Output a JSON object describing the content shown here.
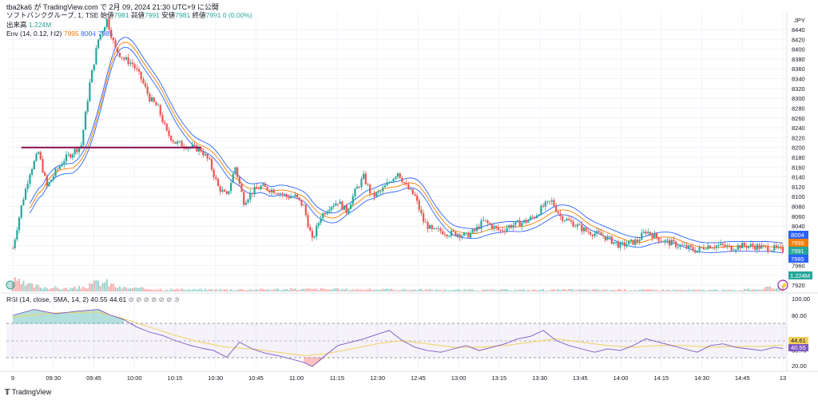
{
  "header": {
    "text": "tba2ka6 が TradingView.com で 2月 09, 2024 21:30 UTC+9 に公開"
  },
  "legend": {
    "symbol": "ソフトバンクグループ, 1, TSE",
    "o_label": "始値",
    "o_val": "7981",
    "h_label": "高値",
    "h_val": "7991",
    "l_label": "安値",
    "l_val": "7981",
    "c_label": "終値",
    "c_val": "7991",
    "chg": "0 (0.00%)",
    "vol_label": "出来高",
    "vol_val": "1.224M",
    "env_label": "Env (14, 0.12, hl2)",
    "env_1": "7995",
    "env_2": "8004",
    "env_3": "7985"
  },
  "rsi_legend": {
    "label": "RSI (14, close, SMA, 14, 2)",
    "v1": "40.55",
    "v2": "44.61"
  },
  "footer": {
    "brand": "TradingView"
  },
  "currency": "JPY",
  "colors": {
    "up": "#26a69a",
    "down": "#ef5350",
    "env_mid": "#f57c00",
    "env_band": "#2962ff",
    "rsi": "#7e57c2",
    "rsi_ma": "#f2d15c",
    "hline": "#880e4f"
  },
  "chart_data": {
    "type": "candlestick",
    "price_ticks": [
      "8440",
      "8420",
      "8400",
      "8380",
      "8360",
      "8340",
      "8320",
      "8300",
      "8280",
      "8260",
      "8240",
      "8220",
      "8200",
      "8180",
      "8160",
      "8140",
      "8120",
      "8100",
      "8080",
      "8060",
      "8040",
      "8020",
      "8000",
      "7980",
      "7960",
      "7940",
      "7920"
    ],
    "time_ticks": [
      "9",
      "09:30",
      "09:45",
      "10:00",
      "10:15",
      "10:30",
      "10:45",
      "11:00",
      "11:15",
      "12:30",
      "12:45",
      "13:00",
      "13:15",
      "13:30",
      "13:45",
      "14:00",
      "14:15",
      "14:30",
      "14:45",
      "13"
    ],
    "rsi_ticks": [
      "100.00",
      "80.00",
      "50.61",
      "38.75",
      "20.00"
    ],
    "price_tags": [
      {
        "text": "8004",
        "price": 8004,
        "color": "#2962ff"
      },
      {
        "text": "7995",
        "price": 7995,
        "color": "#f57c00"
      },
      {
        "text": "7991",
        "price": 7991,
        "color": "#26a69a"
      },
      {
        "text": "7985",
        "price": 7985,
        "color": "#2962ff"
      }
    ],
    "volume_tag": "1.224M",
    "rsi_tags": [
      {
        "text": "44.61",
        "value": 44.61,
        "color": "#f2d15c"
      },
      {
        "text": "40.55",
        "value": 40.55,
        "color": "#7e57c2"
      }
    ],
    "horizontal_line": {
      "price": 8200
    },
    "close_path": [
      [
        0,
        7995
      ],
      [
        4,
        8080
      ],
      [
        8,
        8150
      ],
      [
        12,
        8190
      ],
      [
        16,
        8120
      ],
      [
        20,
        8150
      ],
      [
        24,
        8175
      ],
      [
        28,
        8190
      ],
      [
        32,
        8205
      ],
      [
        36,
        8330
      ],
      [
        40,
        8420
      ],
      [
        44,
        8460
      ],
      [
        48,
        8400
      ],
      [
        52,
        8380
      ],
      [
        56,
        8370
      ],
      [
        60,
        8340
      ],
      [
        64,
        8300
      ],
      [
        68,
        8280
      ],
      [
        72,
        8230
      ],
      [
        76,
        8210
      ],
      [
        80,
        8205
      ],
      [
        84,
        8200
      ],
      [
        88,
        8195
      ],
      [
        92,
        8170
      ],
      [
        96,
        8120
      ],
      [
        100,
        8100
      ],
      [
        104,
        8160
      ],
      [
        108,
        8090
      ],
      [
        112,
        8110
      ],
      [
        116,
        8120
      ],
      [
        120,
        8115
      ],
      [
        124,
        8110
      ],
      [
        128,
        8100
      ],
      [
        132,
        8100
      ],
      [
        136,
        8080
      ],
      [
        140,
        8010
      ],
      [
        144,
        8060
      ],
      [
        148,
        8080
      ],
      [
        152,
        8090
      ],
      [
        156,
        8070
      ],
      [
        160,
        8110
      ],
      [
        164,
        8140
      ],
      [
        168,
        8100
      ],
      [
        172,
        8110
      ],
      [
        176,
        8130
      ],
      [
        180,
        8150
      ],
      [
        184,
        8120
      ],
      [
        188,
        8100
      ],
      [
        192,
        8050
      ],
      [
        196,
        8030
      ],
      [
        200,
        8030
      ],
      [
        204,
        8025
      ],
      [
        208,
        8025
      ],
      [
        212,
        8020
      ],
      [
        216,
        8030
      ],
      [
        220,
        8050
      ],
      [
        224,
        8040
      ],
      [
        228,
        8030
      ],
      [
        232,
        8040
      ],
      [
        236,
        8045
      ],
      [
        240,
        8050
      ],
      [
        244,
        8060
      ],
      [
        248,
        8080
      ],
      [
        252,
        8090
      ],
      [
        256,
        8060
      ],
      [
        260,
        8050
      ],
      [
        264,
        8040
      ],
      [
        268,
        8030
      ],
      [
        272,
        8025
      ],
      [
        276,
        8020
      ],
      [
        280,
        8010
      ],
      [
        284,
        8000
      ],
      [
        288,
        8005
      ],
      [
        292,
        8010
      ],
      [
        296,
        8030
      ],
      [
        300,
        8020
      ],
      [
        304,
        8010
      ],
      [
        308,
        8005
      ],
      [
        312,
        8000
      ],
      [
        316,
        7995
      ],
      [
        320,
        7990
      ],
      [
        324,
        8000
      ],
      [
        328,
        8000
      ],
      [
        332,
        8000
      ],
      [
        336,
        7995
      ],
      [
        340,
        8000
      ],
      [
        344,
        8000
      ],
      [
        348,
        7998
      ],
      [
        352,
        7996
      ],
      [
        356,
        7994
      ],
      [
        360,
        7991
      ]
    ],
    "rsi_path": [
      [
        0,
        80
      ],
      [
        10,
        87
      ],
      [
        20,
        82
      ],
      [
        30,
        85
      ],
      [
        40,
        87
      ],
      [
        46,
        80
      ],
      [
        52,
        75
      ],
      [
        58,
        66
      ],
      [
        64,
        60
      ],
      [
        70,
        56
      ],
      [
        76,
        50
      ],
      [
        82,
        45
      ],
      [
        88,
        41
      ],
      [
        94,
        38
      ],
      [
        100,
        30
      ],
      [
        106,
        48
      ],
      [
        112,
        40
      ],
      [
        118,
        35
      ],
      [
        124,
        32
      ],
      [
        130,
        28
      ],
      [
        136,
        24
      ],
      [
        140,
        19
      ],
      [
        146,
        32
      ],
      [
        152,
        44
      ],
      [
        158,
        48
      ],
      [
        164,
        52
      ],
      [
        170,
        57
      ],
      [
        176,
        62
      ],
      [
        182,
        50
      ],
      [
        188,
        42
      ],
      [
        194,
        38
      ],
      [
        200,
        36
      ],
      [
        206,
        40
      ],
      [
        212,
        44
      ],
      [
        218,
        38
      ],
      [
        224,
        42
      ],
      [
        230,
        46
      ],
      [
        236,
        52
      ],
      [
        242,
        55
      ],
      [
        248,
        62
      ],
      [
        254,
        50
      ],
      [
        260,
        44
      ],
      [
        266,
        40
      ],
      [
        272,
        36
      ],
      [
        278,
        40
      ],
      [
        284,
        38
      ],
      [
        290,
        44
      ],
      [
        296,
        52
      ],
      [
        302,
        48
      ],
      [
        308,
        44
      ],
      [
        314,
        40
      ],
      [
        320,
        36
      ],
      [
        326,
        44
      ],
      [
        332,
        46
      ],
      [
        338,
        42
      ],
      [
        344,
        40
      ],
      [
        350,
        38
      ],
      [
        356,
        42
      ],
      [
        360,
        40.55
      ]
    ],
    "rsi_ma_path": [
      [
        0,
        78
      ],
      [
        20,
        83
      ],
      [
        40,
        84
      ],
      [
        52,
        76
      ],
      [
        64,
        66
      ],
      [
        76,
        56
      ],
      [
        88,
        48
      ],
      [
        100,
        42
      ],
      [
        112,
        40
      ],
      [
        124,
        36
      ],
      [
        136,
        32
      ],
      [
        146,
        34
      ],
      [
        158,
        40
      ],
      [
        170,
        46
      ],
      [
        182,
        50
      ],
      [
        194,
        46
      ],
      [
        206,
        42
      ],
      [
        218,
        42
      ],
      [
        230,
        44
      ],
      [
        242,
        48
      ],
      [
        254,
        52
      ],
      [
        266,
        48
      ],
      [
        278,
        44
      ],
      [
        290,
        42
      ],
      [
        302,
        44
      ],
      [
        314,
        44
      ],
      [
        326,
        42
      ],
      [
        338,
        43
      ],
      [
        350,
        43
      ],
      [
        360,
        44.61
      ]
    ],
    "volume_path": [
      [
        0,
        0.55
      ],
      [
        6,
        0.35
      ],
      [
        12,
        0.25
      ],
      [
        18,
        0.2
      ],
      [
        24,
        0.15
      ],
      [
        30,
        0.18
      ],
      [
        36,
        0.3
      ],
      [
        40,
        0.5
      ],
      [
        44,
        0.45
      ],
      [
        50,
        0.2
      ],
      [
        60,
        0.15
      ],
      [
        70,
        0.12
      ],
      [
        80,
        0.1
      ],
      [
        100,
        0.1
      ],
      [
        140,
        0.12
      ],
      [
        180,
        0.1
      ],
      [
        220,
        0.08
      ],
      [
        260,
        0.09
      ],
      [
        300,
        0.08
      ],
      [
        340,
        0.07
      ],
      [
        356,
        0.2
      ],
      [
        360,
        0.3
      ]
    ]
  }
}
